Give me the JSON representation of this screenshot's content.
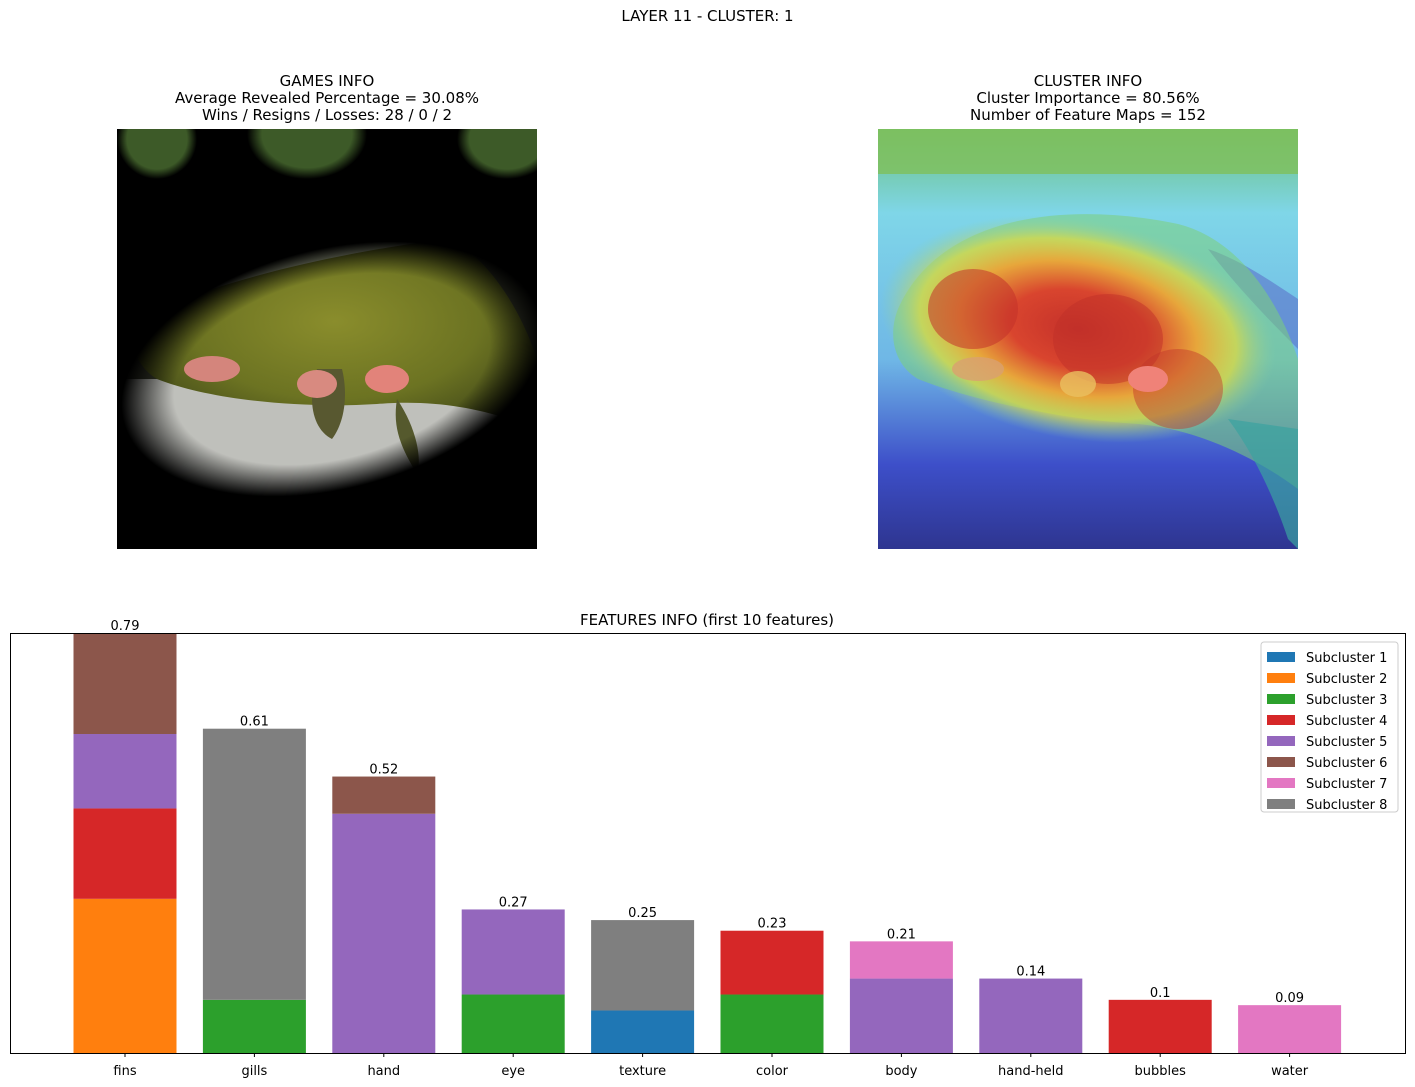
{
  "suptitle": "LAYER 11 - CLUSTER: 1",
  "games_info": {
    "title": "GAMES INFO",
    "line1": "Average Revealed Percentage = 30.08%",
    "line2": "Wins / Resigns / Losses: 28 / 0 / 2"
  },
  "cluster_info": {
    "title": "CLUSTER INFO",
    "line1": "Cluster Importance = 80.56%",
    "line2": "Number of Feature Maps = 152"
  },
  "chart_data": {
    "type": "bar",
    "stacked": true,
    "title": "FEATURES INFO (first 10 features)",
    "xlabel": "",
    "ylabel": "",
    "ylim": [
      0,
      0.79
    ],
    "categories": [
      "fins",
      "gills",
      "hand",
      "eye",
      "texture",
      "color",
      "body",
      "hand-held",
      "bubbles",
      "water"
    ],
    "totals": [
      0.79,
      0.61,
      0.52,
      0.27,
      0.25,
      0.23,
      0.21,
      0.14,
      0.1,
      0.09
    ],
    "total_labels": [
      "0.79",
      "0.61",
      "0.52",
      "0.27",
      "0.25",
      "0.23",
      "0.21",
      "0.14",
      "0.1",
      "0.09"
    ],
    "series": [
      {
        "name": "Subcluster 1",
        "color": "#1f77b4",
        "values": [
          0,
          0,
          0,
          0,
          0.08,
          0,
          0,
          0,
          0,
          0
        ]
      },
      {
        "name": "Subcluster 2",
        "color": "#ff7f0e",
        "values": [
          0.29,
          0,
          0,
          0,
          0,
          0,
          0,
          0,
          0,
          0
        ]
      },
      {
        "name": "Subcluster 3",
        "color": "#2ca02c",
        "values": [
          0,
          0.1,
          0,
          0.11,
          0,
          0.11,
          0,
          0,
          0,
          0
        ]
      },
      {
        "name": "Subcluster 4",
        "color": "#d62728",
        "values": [
          0.17,
          0,
          0,
          0,
          0,
          0.12,
          0,
          0,
          0.1,
          0
        ]
      },
      {
        "name": "Subcluster 5",
        "color": "#9467bd",
        "values": [
          0.14,
          0,
          0.45,
          0.16,
          0,
          0,
          0.14,
          0.14,
          0,
          0
        ]
      },
      {
        "name": "Subcluster 6",
        "color": "#8c564b",
        "values": [
          0.19,
          0,
          0.07,
          0,
          0,
          0,
          0,
          0,
          0,
          0
        ]
      },
      {
        "name": "Subcluster 7",
        "color": "#e377c2",
        "values": [
          0,
          0,
          0,
          0,
          0,
          0,
          0.07,
          0,
          0,
          0.09
        ]
      },
      {
        "name": "Subcluster 8",
        "color": "#7f7f7f",
        "values": [
          0,
          0.51,
          0,
          0,
          0.17,
          0,
          0,
          0,
          0,
          0
        ]
      }
    ],
    "legend": "top-right",
    "grid": false
  }
}
